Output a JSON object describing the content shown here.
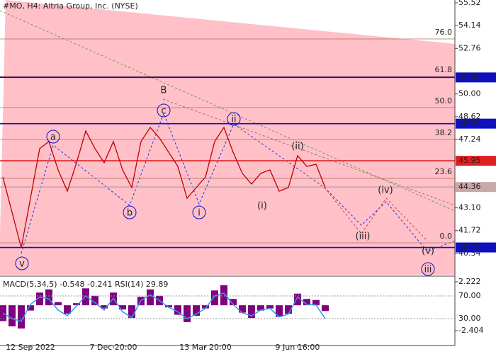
{
  "chart_data": {
    "type": "line",
    "title": "#MO, H4:  Altria Group, Inc. (NYSE)",
    "color": "#c00000",
    "categories": [
      null,
      null,
      null,
      "12 Sep 2022",
      null,
      null,
      null,
      null,
      null,
      null,
      null,
      null,
      "7 Dec 20:00",
      null,
      null,
      null,
      null,
      null,
      null,
      null,
      null,
      null,
      "13 Mar 20:00",
      null,
      null,
      null,
      null,
      null,
      null,
      null,
      null,
      null,
      "9 Jun 16:00",
      null,
      null,
      null
    ],
    "values": [
      44.97,
      42.83,
      40.68,
      43.68,
      46.69,
      47.12,
      45.4,
      44.11,
      45.83,
      47.76,
      46.69,
      45.83,
      47.12,
      45.4,
      44.33,
      47.12,
      47.97,
      47.33,
      46.47,
      45.61,
      43.68,
      44.33,
      44.97,
      47.12,
      47.97,
      46.47,
      45.19,
      44.54,
      45.19,
      45.4,
      44.11,
      44.33,
      46.26,
      45.61,
      45.74,
      44.33
    ],
    "ylim": [
      39.05,
      55.69
    ],
    "yticks": [
      55.52,
      54.14,
      52.76,
      {
        "value": 50,
        "label": "50.00"
      },
      48.62,
      47.24,
      {
        "value": 43.1,
        "label": "43.10"
      },
      41.72,
      40.34
    ],
    "levels": [
      {
        "value": 51,
        "label": "51.00",
        "color": "#1010c0"
      },
      {
        "value": 48.2,
        "label": "48.20",
        "color": "#1010c0"
      },
      {
        "value": 45.95,
        "color": "#e02020"
      },
      {
        "value": 40.7,
        "label": "40.70",
        "color": "#1010c0"
      },
      {
        "value": 44.36,
        "color": "#c8a8a8"
      }
    ],
    "fib": [
      {
        "label": "76.0",
        "value": 53.33
      },
      {
        "label": "61.8",
        "value": 51.06
      },
      {
        "label": "50.0",
        "value": 49.17
      },
      {
        "label": "38.2",
        "value": 47.24
      },
      {
        "label": "23.6",
        "value": 44.89
      },
      {
        "label": "0.0",
        "value": 40.98
      }
    ],
    "waves": [
      {
        "label": "a",
        "style": "circle",
        "color": "#1010c0"
      },
      {
        "label": "b",
        "style": "circle",
        "color": "#1010c0"
      },
      {
        "label": "c",
        "style": "circle",
        "color": "#1010c0"
      },
      {
        "label": "v",
        "style": "circle",
        "color": "#1010c0"
      },
      {
        "label": "i",
        "style": "circle",
        "color": "#1010c0"
      },
      {
        "label": "ii",
        "style": "circle",
        "color": "#1010c0"
      },
      {
        "label": "iii",
        "style": "circle",
        "color": "#1010c0"
      },
      {
        "label": "B",
        "style": "plain",
        "color": "#b04040"
      },
      {
        "label": "(i)",
        "style": "plain",
        "color": "#d02020"
      },
      {
        "label": "(ii)",
        "style": "plain",
        "color": "#d02020"
      },
      {
        "label": "(iii)",
        "style": "plain",
        "color": "#d02020"
      },
      {
        "label": "(iv)",
        "style": "plain",
        "color": "#d02020"
      },
      {
        "label": "(v)",
        "style": "plain",
        "color": "#d02020"
      }
    ],
    "indicator": {
      "title": "MACD(5,34,5) -0.548 -0.241 RSI(14) 29.89",
      "macd": [
        -1.5,
        -2.0,
        -2.2,
        -0.5,
        1.2,
        1.5,
        0.3,
        -0.8,
        0.2,
        1.6,
        0.9,
        -0.3,
        1.2,
        -0.4,
        -1.2,
        0.8,
        1.5,
        0.9,
        -0.2,
        -0.9,
        -1.6,
        -1.0,
        -0.3,
        1.4,
        1.9,
        0.6,
        -0.7,
        -1.2,
        -0.5,
        -0.3,
        -1.1,
        -0.8,
        1.1,
        0.6,
        0.5,
        -0.548
      ],
      "macd_color": "#800080",
      "macd_lim": [
        -3.609,
        2.624
      ],
      "macd_ticks": [
        2.222,
        -2.404
      ],
      "rsi": [
        40,
        30,
        25,
        55,
        68,
        65,
        45,
        35,
        52,
        70,
        58,
        45,
        66,
        42,
        32,
        62,
        72,
        62,
        50,
        42,
        30,
        38,
        48,
        70,
        75,
        55,
        40,
        35,
        45,
        48,
        33,
        38,
        68,
        55,
        54,
        29.89
      ],
      "rsi_color": "#3399ee",
      "rsi_lim": [
        -13.75,
        102.5
      ],
      "rsi_ticks": [
        {
          "value": 70,
          "label": "70.00"
        },
        {
          "value": 30,
          "label": "30.00"
        }
      ]
    }
  }
}
